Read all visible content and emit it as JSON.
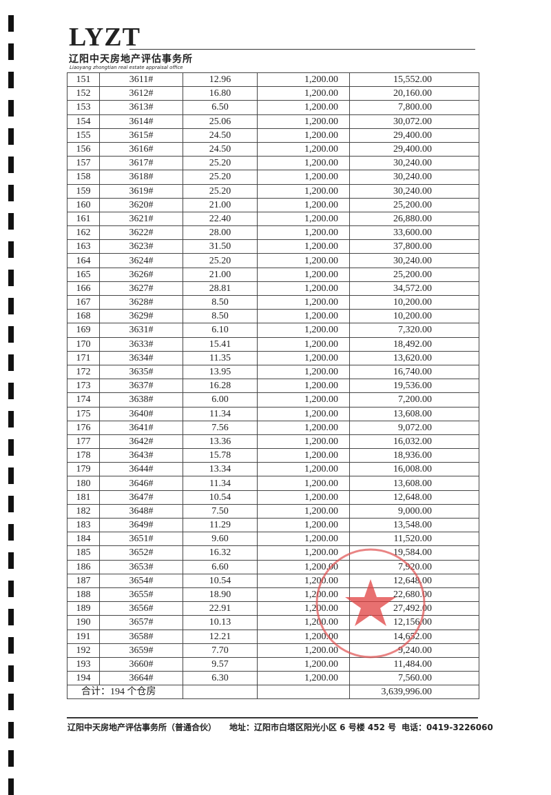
{
  "header": {
    "logo": "LYZT",
    "company": "辽阳中天房地产评估事务所",
    "company_en": "Liaoyang zhongtian real estate appraisal office"
  },
  "table": {
    "rows": [
      [
        "151",
        "3611#",
        "12.96",
        "1,200.00",
        "15,552.00"
      ],
      [
        "152",
        "3612#",
        "16.80",
        "1,200.00",
        "20,160.00"
      ],
      [
        "153",
        "3613#",
        "6.50",
        "1,200.00",
        "7,800.00"
      ],
      [
        "154",
        "3614#",
        "25.06",
        "1,200.00",
        "30,072.00"
      ],
      [
        "155",
        "3615#",
        "24.50",
        "1,200.00",
        "29,400.00"
      ],
      [
        "156",
        "3616#",
        "24.50",
        "1,200.00",
        "29,400.00"
      ],
      [
        "157",
        "3617#",
        "25.20",
        "1,200.00",
        "30,240.00"
      ],
      [
        "158",
        "3618#",
        "25.20",
        "1,200.00",
        "30,240.00"
      ],
      [
        "159",
        "3619#",
        "25.20",
        "1,200.00",
        "30,240.00"
      ],
      [
        "160",
        "3620#",
        "21.00",
        "1,200.00",
        "25,200.00"
      ],
      [
        "161",
        "3621#",
        "22.40",
        "1,200.00",
        "26,880.00"
      ],
      [
        "162",
        "3622#",
        "28.00",
        "1,200.00",
        "33,600.00"
      ],
      [
        "163",
        "3623#",
        "31.50",
        "1,200.00",
        "37,800.00"
      ],
      [
        "164",
        "3624#",
        "25.20",
        "1,200.00",
        "30,240.00"
      ],
      [
        "165",
        "3626#",
        "21.00",
        "1,200.00",
        "25,200.00"
      ],
      [
        "166",
        "3627#",
        "28.81",
        "1,200.00",
        "34,572.00"
      ],
      [
        "167",
        "3628#",
        "8.50",
        "1,200.00",
        "10,200.00"
      ],
      [
        "168",
        "3629#",
        "8.50",
        "1,200.00",
        "10,200.00"
      ],
      [
        "169",
        "3631#",
        "6.10",
        "1,200.00",
        "7,320.00"
      ],
      [
        "170",
        "3633#",
        "15.41",
        "1,200.00",
        "18,492.00"
      ],
      [
        "171",
        "3634#",
        "11.35",
        "1,200.00",
        "13,620.00"
      ],
      [
        "172",
        "3635#",
        "13.95",
        "1,200.00",
        "16,740.00"
      ],
      [
        "173",
        "3637#",
        "16.28",
        "1,200.00",
        "19,536.00"
      ],
      [
        "174",
        "3638#",
        "6.00",
        "1,200.00",
        "7,200.00"
      ],
      [
        "175",
        "3640#",
        "11.34",
        "1,200.00",
        "13,608.00"
      ],
      [
        "176",
        "3641#",
        "7.56",
        "1,200.00",
        "9,072.00"
      ],
      [
        "177",
        "3642#",
        "13.36",
        "1,200.00",
        "16,032.00"
      ],
      [
        "178",
        "3643#",
        "15.78",
        "1,200.00",
        "18,936.00"
      ],
      [
        "179",
        "3644#",
        "13.34",
        "1,200.00",
        "16,008.00"
      ],
      [
        "180",
        "3646#",
        "11.34",
        "1,200.00",
        "13,608.00"
      ],
      [
        "181",
        "3647#",
        "10.54",
        "1,200.00",
        "12,648.00"
      ],
      [
        "182",
        "3648#",
        "7.50",
        "1,200.00",
        "9,000.00"
      ],
      [
        "183",
        "3649#",
        "11.29",
        "1,200.00",
        "13,548.00"
      ],
      [
        "184",
        "3651#",
        "9.60",
        "1,200.00",
        "11,520.00"
      ],
      [
        "185",
        "3652#",
        "16.32",
        "1,200.00",
        "19,584.00"
      ],
      [
        "186",
        "3653#",
        "6.60",
        "1,200.00",
        "7,920.00"
      ],
      [
        "187",
        "3654#",
        "10.54",
        "1,200.00",
        "12,648.00"
      ],
      [
        "188",
        "3655#",
        "18.90",
        "1,200.00",
        "22,680.00"
      ],
      [
        "189",
        "3656#",
        "22.91",
        "1,200.00",
        "27,492.00"
      ],
      [
        "190",
        "3657#",
        "10.13",
        "1,200.00",
        "12,156.00"
      ],
      [
        "191",
        "3658#",
        "12.21",
        "1,200.00",
        "14,652.00"
      ],
      [
        "192",
        "3659#",
        "7.70",
        "1,200.00",
        "9,240.00"
      ],
      [
        "193",
        "3660#",
        "9.57",
        "1,200.00",
        "11,484.00"
      ],
      [
        "194",
        "3664#",
        "6.30",
        "1,200.00",
        "7,560.00"
      ]
    ],
    "total": {
      "label": "合计：194 个仓房",
      "value": "3,639,996.00"
    }
  },
  "footer": {
    "company": "辽阳中天房地产评估事务所（普通合伙）",
    "address": "地址：辽阳市白塔区阳光小区 6 号楼 452 号",
    "phone": "电话：0419-3226060"
  }
}
